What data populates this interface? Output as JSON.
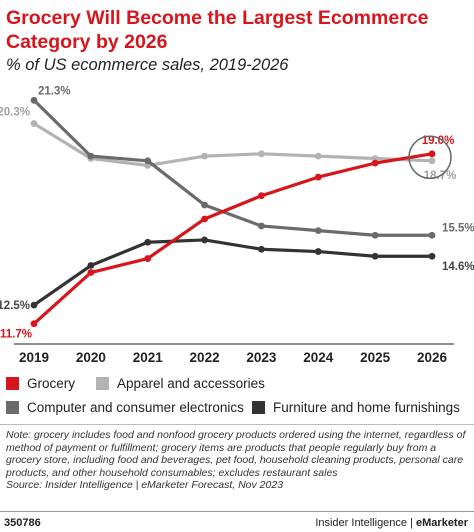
{
  "header": {
    "title": "Grocery Will Become the Largest Ecommerce Category by 2026",
    "subtitle": "% of US ecommerce sales, 2019-2026"
  },
  "chart_data": {
    "type": "line",
    "x": [
      "2019",
      "2020",
      "2021",
      "2022",
      "2023",
      "2024",
      "2025",
      "2026"
    ],
    "ylim": [
      11,
      22
    ],
    "grid": false,
    "legend_placement": "bottom",
    "series": [
      {
        "name": "Grocery",
        "color": "#d8151c",
        "values": [
          11.7,
          13.9,
          14.5,
          16.2,
          17.2,
          18.0,
          18.6,
          19.0
        ],
        "labels": {
          "start": "11.7%",
          "end": "19.0%"
        }
      },
      {
        "name": "Apparel and accessories",
        "color": "#b3b3b3",
        "values": [
          20.3,
          18.8,
          18.5,
          18.9,
          19.0,
          18.9,
          18.8,
          18.7
        ],
        "labels": {
          "start": "20.3%",
          "end": "18.7%"
        }
      },
      {
        "name": "Computer and consumer electronics",
        "color": "#6b6b6b",
        "values": [
          21.3,
          18.9,
          18.7,
          16.8,
          15.9,
          15.7,
          15.5,
          15.5
        ],
        "labels": {
          "start": "21.3%",
          "end": "15.5%"
        }
      },
      {
        "name": "Furniture and home furnishings",
        "color": "#333333",
        "values": [
          12.5,
          14.2,
          15.2,
          15.3,
          14.9,
          14.8,
          14.6,
          14.6
        ],
        "labels": {
          "start": "12.5%",
          "end": "14.6%"
        }
      }
    ]
  },
  "notes": {
    "note": "Note: grocery includes food and nonfood grocery products ordered using the internet, regardless of method of payment or fulfillment; grocery items are products that people regularly buy from a grocery store, including food and beverages, pet food, household cleaning products, personal care products, and other household consumables; excludes restaurant sales",
    "source": "Source: Insider Intelligence | eMarketer Forecast, Nov 2023"
  },
  "footer": {
    "chart_id": "350786",
    "brand_left": "Insider Intelligence | ",
    "brand_right": "eMarketer"
  }
}
